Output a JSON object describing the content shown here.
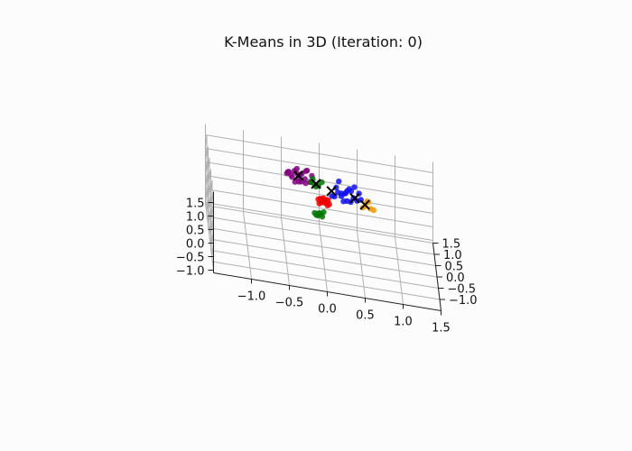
{
  "chart_data": {
    "type": "scatter",
    "projection": "3d",
    "title": "K-Means in 3D (Iteration: 0)",
    "xlabel": "",
    "ylabel": "",
    "zlabel": "",
    "xlim": [
      -1.5,
      1.5
    ],
    "ylim": [
      -1.5,
      1.5
    ],
    "zlim": [
      -1.1,
      1.9
    ],
    "x_ticks": [
      "−1.0",
      "−0.5",
      "0.0",
      "0.5",
      "1.0",
      "1.5"
    ],
    "y_ticks": [
      "−1.0",
      "−0.5",
      "0.0",
      "0.5",
      "1.0",
      "1.5"
    ],
    "z_ticks": [
      "−1.0",
      "−0.5",
      "0.0",
      "0.5",
      "1.0",
      "1.5"
    ],
    "grid": true,
    "legend": "none",
    "series": [
      {
        "color": "#800080",
        "points": [
          [
            -0.45,
            0.8,
            1.15
          ],
          [
            -0.4,
            0.7,
            1.2
          ],
          [
            -0.35,
            0.85,
            1.25
          ],
          [
            -0.3,
            0.75,
            1.1
          ],
          [
            -0.25,
            0.9,
            1.15
          ],
          [
            -0.28,
            0.65,
            1.3
          ],
          [
            -0.35,
            0.6,
            1.05
          ],
          [
            -0.2,
            0.8,
            1.35
          ],
          [
            -0.42,
            0.95,
            1.1
          ],
          [
            -0.15,
            0.7,
            1.05
          ],
          [
            -0.32,
            0.78,
            1.4
          ],
          [
            -0.22,
            0.62,
            1.2
          ],
          [
            -0.38,
            0.88,
            0.98
          ],
          [
            -0.18,
            0.92,
            1.28
          ],
          [
            -0.3,
            0.55,
            1.12
          ],
          [
            -0.26,
            0.72,
            1.0
          ],
          [
            -0.12,
            0.84,
            1.18
          ],
          [
            -0.33,
            0.66,
            1.33
          ],
          [
            -0.44,
            0.74,
            1.26
          ],
          [
            -0.21,
            0.58,
            1.08
          ]
        ]
      },
      {
        "color": "#1010ee",
        "points": [
          [
            0.2,
            0.2,
            1.25
          ],
          [
            0.3,
            0.1,
            1.35
          ],
          [
            0.25,
            0.3,
            1.15
          ],
          [
            0.4,
            0.0,
            1.3
          ],
          [
            0.35,
            0.25,
            1.4
          ],
          [
            0.15,
            0.05,
            1.2
          ],
          [
            0.45,
            0.15,
            1.1
          ],
          [
            0.28,
            -0.05,
            1.45
          ],
          [
            0.38,
            0.35,
            1.25
          ],
          [
            0.22,
            0.4,
            1.5
          ],
          [
            0.5,
            0.1,
            1.2
          ],
          [
            0.32,
            0.18,
            1.0
          ],
          [
            0.18,
            0.25,
            1.38
          ],
          [
            0.42,
            0.28,
            1.48
          ],
          [
            0.27,
            0.08,
            1.05
          ],
          [
            0.36,
            -0.1,
            1.22
          ],
          [
            0.48,
            0.22,
            1.32
          ],
          [
            0.12,
            0.15,
            1.12
          ],
          [
            0.33,
            0.42,
            1.18
          ],
          [
            0.24,
            0.02,
            1.28
          ]
        ]
      },
      {
        "color": "#ee9900",
        "points": [
          [
            0.55,
            -0.1,
            1.15
          ],
          [
            0.62,
            -0.05,
            1.05
          ],
          [
            0.58,
            0.05,
            1.22
          ],
          [
            0.66,
            -0.15,
            1.1
          ],
          [
            0.52,
            0.0,
            1.0
          ],
          [
            0.6,
            0.08,
            1.18
          ]
        ]
      },
      {
        "color": "#ee0000",
        "points": [
          [
            0.0,
            0.1,
            0.9
          ],
          [
            0.05,
            0.15,
            0.95
          ],
          [
            -0.05,
            0.05,
            0.85
          ],
          [
            0.08,
            0.0,
            0.92
          ],
          [
            0.02,
            0.2,
            0.88
          ],
          [
            -0.03,
            0.12,
            0.98
          ],
          [
            0.06,
            0.08,
            0.8
          ],
          [
            0.0,
            0.18,
            0.82
          ],
          [
            0.04,
            0.02,
            0.96
          ],
          [
            -0.06,
            0.16,
            0.91
          ],
          [
            0.03,
            0.1,
            0.86
          ],
          [
            0.07,
            0.14,
            0.94
          ],
          [
            -0.02,
            0.06,
            0.89
          ],
          [
            0.01,
            0.22,
            0.93
          ]
        ]
      },
      {
        "color": "#007700",
        "points": [
          [
            -0.05,
            -0.2,
            0.7
          ],
          [
            -0.1,
            -0.25,
            0.65
          ],
          [
            0.0,
            -0.15,
            0.72
          ],
          [
            -0.08,
            -0.3,
            0.68
          ],
          [
            -0.02,
            -0.22,
            0.6
          ],
          [
            -0.12,
            -0.18,
            0.66
          ],
          [
            -0.04,
            -0.28,
            0.74
          ],
          [
            -0.07,
            -0.12,
            0.62
          ],
          [
            -0.15,
            0.4,
            1.3
          ],
          [
            -0.1,
            0.45,
            1.2
          ],
          [
            -0.05,
            0.35,
            1.25
          ],
          [
            -0.12,
            0.5,
            1.35
          ],
          [
            -0.08,
            0.42,
            1.15
          ],
          [
            0.0,
            0.5,
            1.28
          ]
        ]
      }
    ],
    "centroids": [
      {
        "color": "#800080",
        "point": [
          -0.3,
          0.75,
          1.18
        ]
      },
      {
        "color": "#1010ee",
        "point": [
          0.42,
          0.1,
          1.22
        ]
      },
      {
        "color": "#ee9900",
        "point": [
          0.55,
          0.0,
          1.12
        ]
      },
      {
        "color": "#007700",
        "point": [
          -0.08,
          0.42,
          1.25
        ]
      },
      {
        "color": "#ee0000",
        "point": [
          0.12,
          0.3,
          1.18
        ]
      }
    ],
    "centroid_marker": "x",
    "axis_color": "#222222",
    "grid_color": "#b0b0b0"
  }
}
